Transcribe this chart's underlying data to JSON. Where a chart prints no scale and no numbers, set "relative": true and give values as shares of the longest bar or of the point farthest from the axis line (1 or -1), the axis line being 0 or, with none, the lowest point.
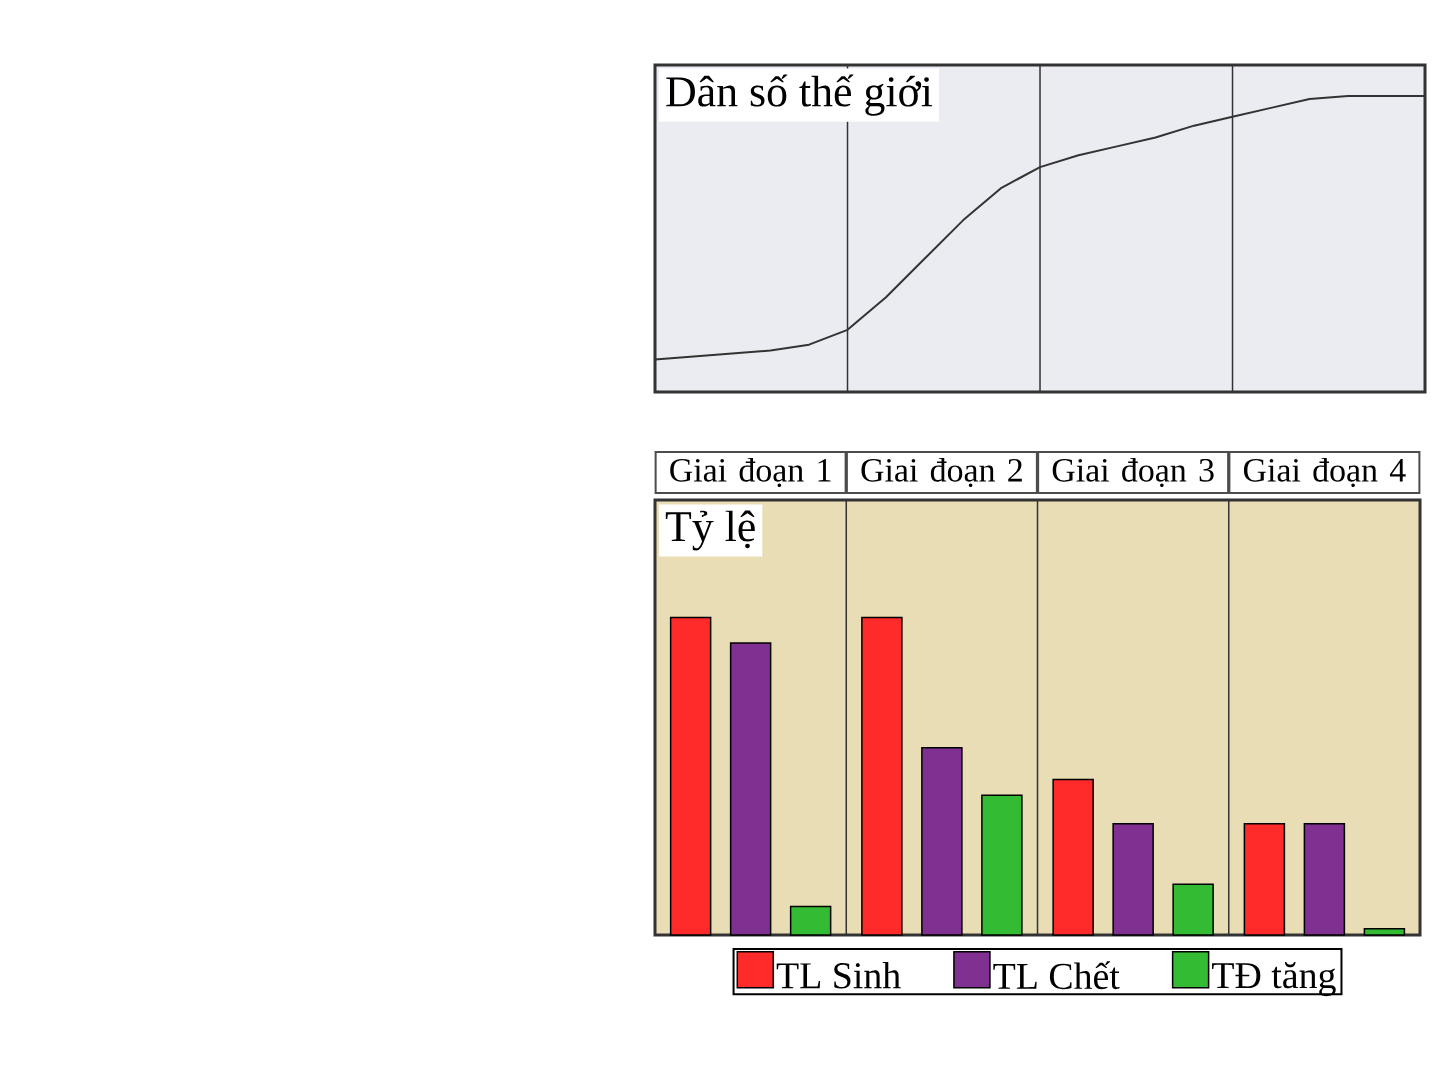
{
  "chart_data": [
    {
      "type": "line",
      "title": "Dân số thế giới",
      "relative": true,
      "categories": [
        null,
        null,
        null,
        null,
        null,
        null,
        null,
        null,
        null,
        null,
        null,
        null,
        null,
        null,
        null,
        null,
        null,
        null,
        null,
        null,
        null
      ],
      "series": [
        {
          "color": "#333333",
          "values": [
            0.11,
            0.12,
            0.13,
            0.14,
            0.16,
            0.21,
            0.32,
            0.45,
            0.58,
            0.69,
            0.76,
            0.8,
            0.83,
            0.86,
            0.9,
            0.93,
            0.96,
            0.99,
            1,
            1,
            1
          ]
        }
      ],
      "grid": "x"
    },
    {
      "type": "bar",
      "title": "Tỷ lệ",
      "relative": true,
      "categories": [
        "Giai đoạn 1",
        "Giai đoạn 2",
        "Giai đoạn 3",
        "Giai đoạn 4"
      ],
      "series": [
        {
          "name": "TL Sinh",
          "color": "#ff2a2a",
          "values": [
            1,
            1,
            0.49,
            0.35
          ]
        },
        {
          "name": "TL Chết",
          "color": "#7f3090",
          "values": [
            0.92,
            0.59,
            0.35,
            0.35
          ]
        },
        {
          "name": "TĐ tăng",
          "color": "#33bb33",
          "values": [
            0.09,
            0.44,
            0.16,
            0.02
          ]
        }
      ],
      "legend": "bottom",
      "grid": "x"
    }
  ]
}
